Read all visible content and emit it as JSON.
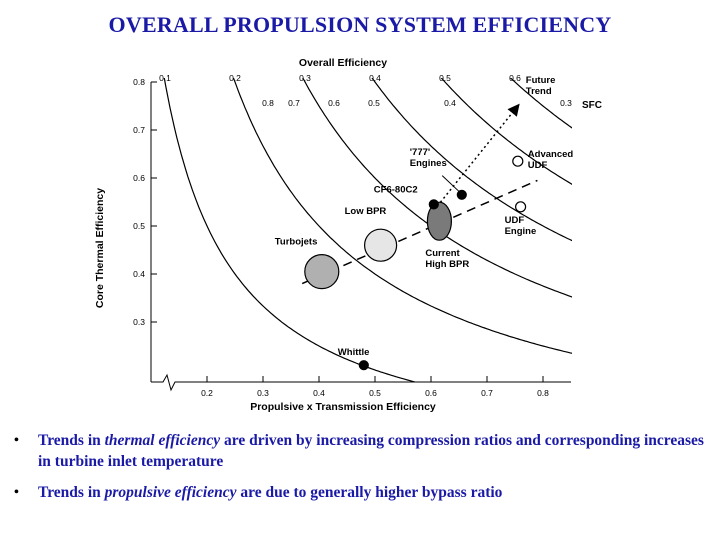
{
  "title": "OVERALL PROPULSION SYSTEM EFFICIENCY",
  "chart_data": {
    "type": "scatter",
    "title": "Overall Efficiency",
    "xlabel": "Propulsive x Transmission Efficiency",
    "ylabel": "Core Thermal Efficiency",
    "xlim": [
      0.1,
      0.85
    ],
    "ylim": [
      0.2,
      0.8
    ],
    "x_ticks": [
      0.2,
      0.3,
      0.4,
      0.5,
      0.6,
      0.7,
      0.8
    ],
    "y_ticks": [
      0.3,
      0.4,
      0.5,
      0.6,
      0.7,
      0.8
    ],
    "overall_efficiency_curves": [
      0.1,
      0.2,
      0.3,
      0.4,
      0.5,
      0.6
    ],
    "sfc_label": "SFC",
    "sfc_values": [
      "0.8",
      "0.7",
      "0.6",
      "0.5",
      "0.4",
      "0.3"
    ],
    "points": [
      {
        "label": "Whittle",
        "x": 0.48,
        "y": 0.21,
        "style": "filled"
      },
      {
        "label": "CF6-80C2",
        "x": 0.605,
        "y": 0.545,
        "style": "filled"
      },
      {
        "label": "'777' Engines",
        "x": 0.655,
        "y": 0.565,
        "style": "filled"
      },
      {
        "label": "Advanced UDF",
        "x": 0.755,
        "y": 0.635,
        "style": "open"
      },
      {
        "label": "UDF Engine",
        "x": 0.76,
        "y": 0.54,
        "style": "open"
      }
    ],
    "regions": [
      {
        "label": "Turbojets",
        "x": 0.405,
        "y": 0.405,
        "shade": "#b0b0b0"
      },
      {
        "label": "Low BPR",
        "x": 0.51,
        "y": 0.46,
        "shade": "#e6e6e6"
      },
      {
        "label": "Current High BPR",
        "x": 0.615,
        "y": 0.51,
        "shade": "#7a7a7a"
      }
    ],
    "trend_line": {
      "from": [
        0.37,
        0.38
      ],
      "to": [
        0.79,
        0.595
      ]
    },
    "future_trend": {
      "label": "Future Trend",
      "from": [
        0.6,
        0.525
      ],
      "to": [
        0.755,
        0.75
      ]
    }
  },
  "bullets": [
    {
      "prefix": "Trends in ",
      "emph": "thermal efficiency",
      "rest": " are driven by increasing compression ratios and corresponding increases in turbine inlet temperature"
    },
    {
      "prefix": "Trends in ",
      "emph": "propulsive efficiency",
      "rest": " are due to generally higher bypass ratio"
    }
  ]
}
